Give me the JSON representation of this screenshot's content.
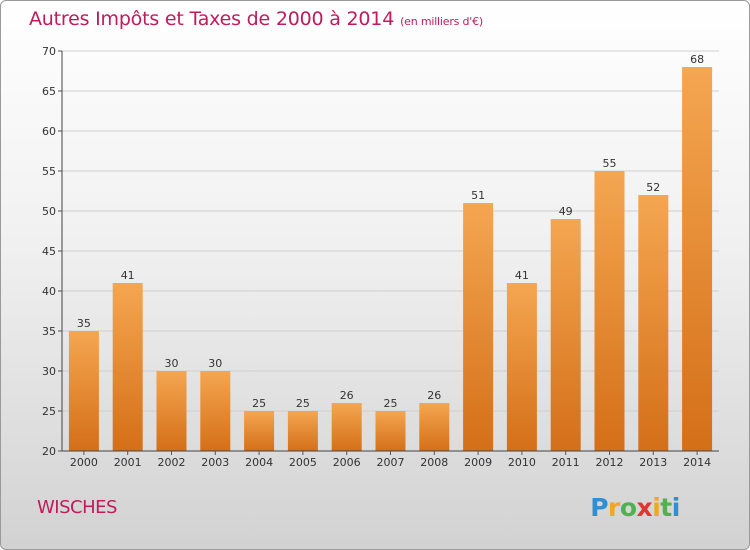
{
  "title": "Autres Impôts et Taxes de 2000 à 2014",
  "subtitle": "(en milliers d'€)",
  "commune": "WISCHES",
  "brand": "Proxiti",
  "colors": {
    "title": "#c01b5b",
    "bar_top": "#f5a651",
    "bar_bottom": "#d46f18",
    "grid": "#cfcfcf"
  },
  "chart_data": {
    "type": "bar",
    "title": "Autres Impôts et Taxes de 2000 à 2014",
    "subtitle": "(en milliers d'€)",
    "xlabel": "",
    "ylabel": "",
    "categories": [
      "2000",
      "2001",
      "2002",
      "2003",
      "2004",
      "2005",
      "2006",
      "2007",
      "2008",
      "2009",
      "2010",
      "2011",
      "2012",
      "2013",
      "2014"
    ],
    "values": [
      35,
      41,
      30,
      30,
      25,
      25,
      26,
      25,
      26,
      51,
      41,
      49,
      55,
      52,
      68
    ],
    "ylim": [
      20,
      70
    ],
    "yticks": [
      20,
      25,
      30,
      35,
      40,
      45,
      50,
      55,
      60,
      65,
      70
    ],
    "grid": true,
    "data_labels": true
  }
}
